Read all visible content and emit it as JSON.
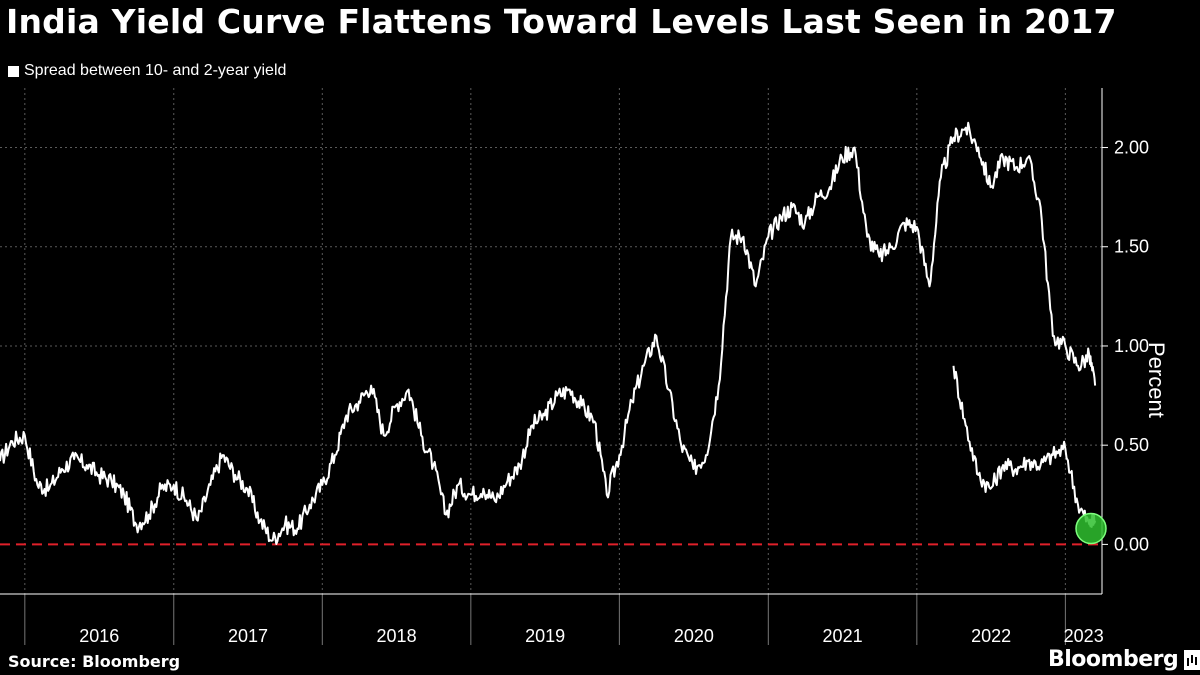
{
  "title": "India Yield Curve Flattens Toward Levels Last Seen in 2017",
  "source": "Source: Bloomberg",
  "brand": "Bloomberg",
  "colors": {
    "line": "#ffffff",
    "zero_line": "#e0202a",
    "highlight": "#2fbf2f",
    "grid": "#5a5a5a"
  },
  "chart_data": {
    "type": "line",
    "title": "India Yield Curve Flattens Toward Levels Last Seen in 2017",
    "legend": [
      "Spread between 10- and 2-year yield"
    ],
    "ylabel": "Percent",
    "xlabel": "",
    "ylim": [
      -0.25,
      2.3
    ],
    "xlim": [
      "2015-11-01",
      "2023-04-01"
    ],
    "yticks": [
      0.0,
      0.5,
      1.0,
      1.5,
      2.0
    ],
    "ytick_labels": [
      "0.00",
      "0.50",
      "1.00",
      "1.50",
      "2.00"
    ],
    "xtick_labels": [
      "2016",
      "2017",
      "2018",
      "2019",
      "2020",
      "2021",
      "2022",
      "2023"
    ],
    "grid": true,
    "reference_line": {
      "y": 0.0,
      "style": "dashed",
      "color": "red"
    },
    "highlight_point": {
      "x": "2023-03-05",
      "y": 0.08
    },
    "series": [
      {
        "name": "Spread between 10- and 2-year yield",
        "x": [
          "2015-11-01",
          "2015-12-01",
          "2016-01-01",
          "2016-02-01",
          "2016-03-01",
          "2016-04-01",
          "2016-05-01",
          "2016-06-01",
          "2016-07-01",
          "2016-08-01",
          "2016-09-01",
          "2016-10-01",
          "2016-11-01",
          "2016-12-01",
          "2017-01-01",
          "2017-02-01",
          "2017-03-01",
          "2017-04-01",
          "2017-05-01",
          "2017-06-01",
          "2017-07-01",
          "2017-08-01",
          "2017-09-01",
          "2017-10-01",
          "2017-11-01",
          "2017-12-01",
          "2018-01-01",
          "2018-02-01",
          "2018-03-01",
          "2018-04-01",
          "2018-05-01",
          "2018-06-01",
          "2018-07-01",
          "2018-08-01",
          "2018-09-01",
          "2018-10-01",
          "2018-11-01",
          "2018-12-01",
          "2019-01-01",
          "2019-02-01",
          "2019-03-01",
          "2019-04-01",
          "2019-05-01",
          "2019-06-01",
          "2019-07-01",
          "2019-08-01",
          "2019-09-01",
          "2019-10-01",
          "2019-11-01",
          "2019-12-01",
          "2020-01-01",
          "2020-02-01",
          "2020-03-01",
          "2020-04-01",
          "2020-05-01",
          "2020-06-01",
          "2020-07-01",
          "2020-08-01",
          "2020-09-01",
          "2020-10-01",
          "2020-11-01",
          "2020-12-01",
          "2021-01-01",
          "2021-02-01",
          "2021-03-01",
          "2021-04-01",
          "2021-05-01",
          "2021-06-01",
          "2021-07-01",
          "2021-08-01",
          "2021-09-01",
          "2021-10-01",
          "2021-11-01",
          "2021-12-01",
          "2022-01-01",
          "2022-02-01",
          "2022-03-01",
          "2022-04-01",
          "2022-05-01",
          "2022-06-01",
          "2022-07-01",
          "2022-08-01",
          "2022-09-01",
          "2022-10-01",
          "2022-11-01",
          "2022-12-01",
          "2023-01-01",
          "2023-02-01",
          "2023-03-01",
          "2023-03-15"
        ],
        "values": [
          0.42,
          0.52,
          0.55,
          0.3,
          0.28,
          0.38,
          0.43,
          0.4,
          0.35,
          0.32,
          0.25,
          0.1,
          0.15,
          0.28,
          0.3,
          0.22,
          0.12,
          0.3,
          0.45,
          0.35,
          0.28,
          0.12,
          0.02,
          0.1,
          0.08,
          0.2,
          0.3,
          0.45,
          0.65,
          0.72,
          0.8,
          0.55,
          0.7,
          0.78,
          0.55,
          0.4,
          0.15,
          0.3,
          0.25,
          0.28,
          0.22,
          0.32,
          0.4,
          0.6,
          0.65,
          0.75,
          0.78,
          0.7,
          0.62,
          0.25,
          0.45,
          0.72,
          0.9,
          1.05,
          0.78,
          0.5,
          0.38,
          0.45,
          0.8,
          1.55,
          1.55,
          1.3,
          1.55,
          1.65,
          1.7,
          1.62,
          1.75,
          1.8,
          1.95,
          2.0,
          1.55,
          1.45,
          1.5,
          1.62,
          1.6,
          1.3,
          1.85,
          2.05,
          2.1,
          2.0,
          1.8,
          1.95,
          1.9,
          1.95,
          1.7,
          1.05,
          1.0,
          0.9,
          0.95,
          0.8
        ]
      },
      {
        "name": "",
        "x": [
          "2022-04-01",
          "2022-05-01",
          "2022-06-01",
          "2022-07-01",
          "2022-08-01",
          "2022-09-01",
          "2022-10-01",
          "2022-11-01",
          "2022-12-01",
          "2023-01-01",
          "2023-02-01",
          "2023-03-01",
          "2023-03-15"
        ],
        "values": [
          0.9,
          0.6,
          0.35,
          0.28,
          0.4,
          0.38,
          0.42,
          0.4,
          0.45,
          0.48,
          0.2,
          0.1,
          0.12
        ]
      }
    ]
  }
}
